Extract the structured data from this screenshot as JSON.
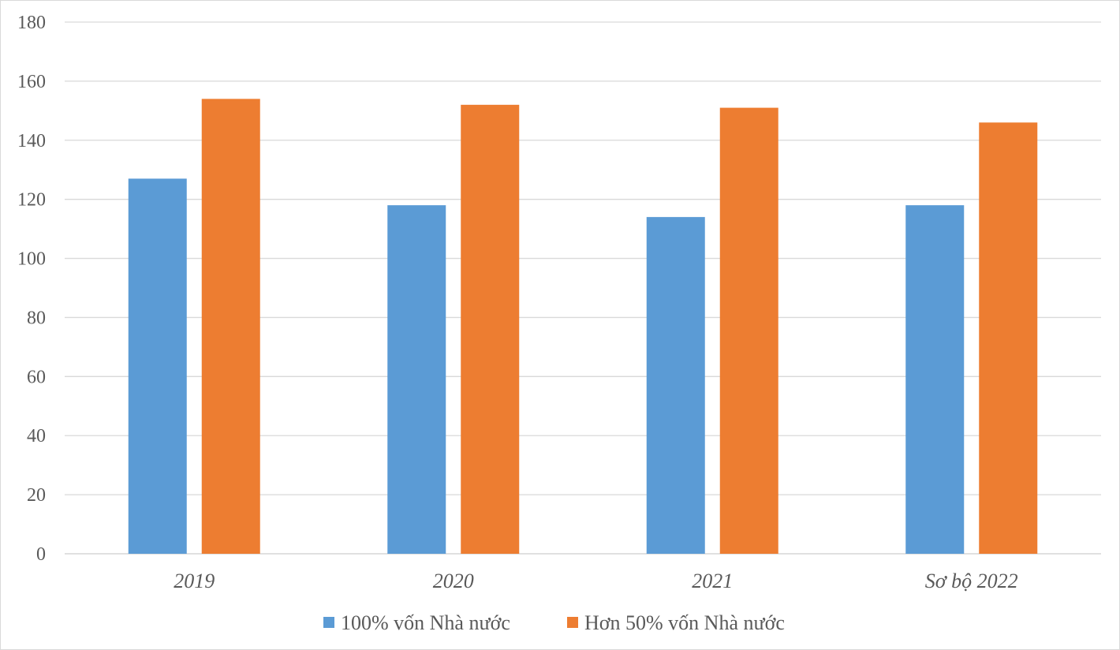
{
  "chart_data": {
    "type": "bar",
    "categories": [
      "2019",
      "2020",
      "2021",
      "Sơ bộ 2022"
    ],
    "series": [
      {
        "name": "100% vốn Nhà nước",
        "color": "#5b9bd5",
        "values": [
          127,
          118,
          114,
          118
        ]
      },
      {
        "name": "Hơn 50% vốn Nhà nước",
        "color": "#ed7d31",
        "values": [
          154,
          152,
          151,
          146
        ]
      }
    ],
    "ylim": [
      0,
      180
    ],
    "yticks": [
      0,
      20,
      40,
      60,
      80,
      100,
      120,
      140,
      160,
      180
    ],
    "grid": true,
    "legend_position": "bottom",
    "gridline_color": "#d9d9d9",
    "text_color": "#595959"
  }
}
